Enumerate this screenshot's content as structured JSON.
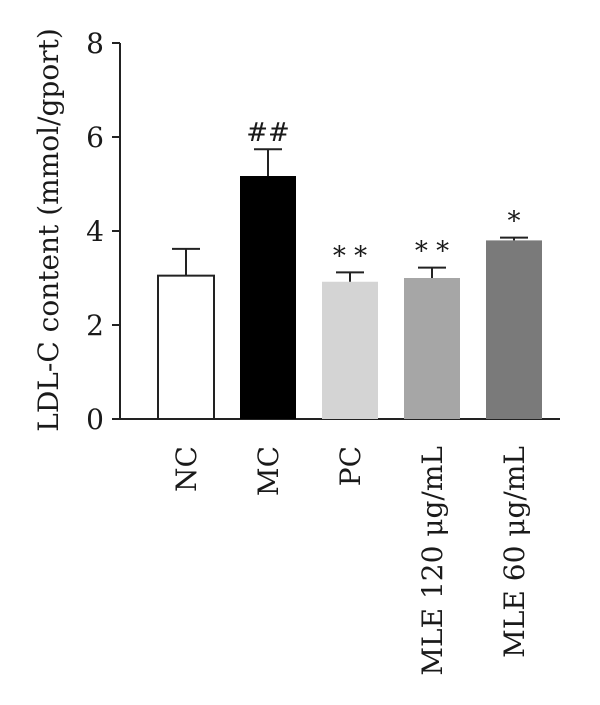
{
  "chart_data": {
    "type": "bar",
    "ylabel": "LDL-C content (mmol/gport)",
    "xlabel": "",
    "ylim": [
      0,
      8
    ],
    "yticks": [
      0,
      2,
      4,
      6,
      8
    ],
    "categories": [
      "NC",
      "MC",
      "PC",
      "MLE 120 μg/mL",
      "MLE 60 μg/mL"
    ],
    "values": [
      3.05,
      5.17,
      2.92,
      3.0,
      3.8
    ],
    "errors": [
      0.57,
      0.57,
      0.2,
      0.22,
      0.06
    ],
    "annotations": [
      "",
      "##",
      "* *",
      "* *",
      "*"
    ],
    "colors": [
      "#ffffff",
      "#000000",
      "#d4d4d4",
      "#a6a6a6",
      "#7a7a7a"
    ],
    "grid": false
  }
}
